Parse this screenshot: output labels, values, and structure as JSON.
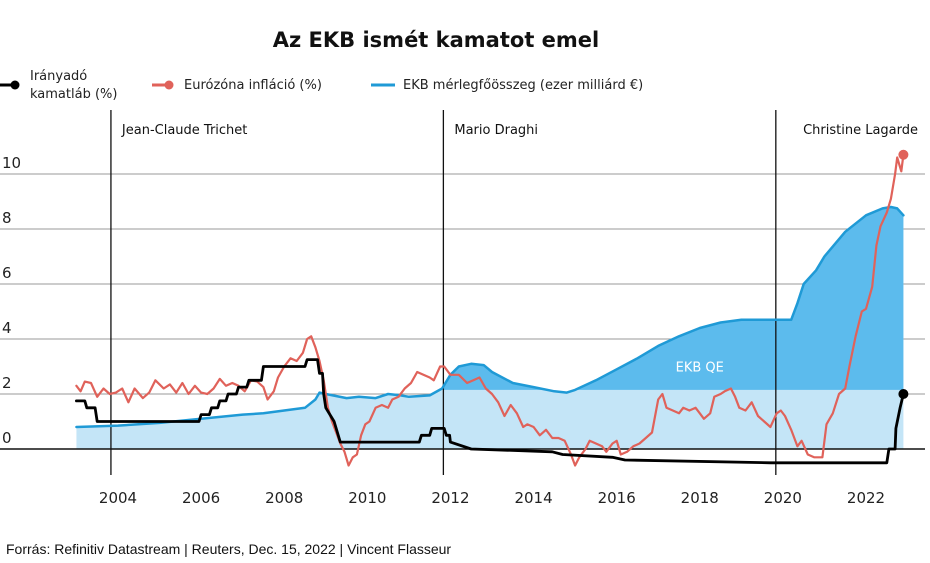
{
  "chart_data": {
    "type": "line",
    "title": "Az EKB ismét kamatot emel",
    "source": "Forrás: Refinitiv Datastream | Reuters, Dec. 15, 2022 | Vincent Flasseur",
    "legend": {
      "placement": "top-left",
      "entries": [
        {
          "label_line1": "Irányadó",
          "label_line2": "kamatláb (%)",
          "color": "#000000",
          "marker": "dot"
        },
        {
          "label": "Eurózóna infláció (%)",
          "color": "#e0625a",
          "marker": "dot"
        },
        {
          "label": "EKB mérlegfőösszeg (ezer milliárd €)",
          "color": "#1f9ad6",
          "marker": "line"
        }
      ]
    },
    "xlim": [
      2002.7,
      2023.3
    ],
    "ylim": [
      -1,
      11.5
    ],
    "grid": "horizontal",
    "yticks": [
      0,
      2,
      4,
      6,
      8,
      10
    ],
    "ytick_labels": [
      "0",
      "2",
      "4",
      "6",
      "8",
      "10"
    ],
    "xticks": [
      2004,
      2006,
      2008,
      2010,
      2012,
      2014,
      2016,
      2018,
      2020,
      2022
    ],
    "xtick_labels": [
      "2004",
      "2006",
      "2008",
      "2010",
      "2012",
      "2014",
      "2016",
      "2018",
      "2020",
      "2022"
    ],
    "eras": [
      {
        "label": "Jean-Claude Trichet",
        "start": 2003.83
      },
      {
        "label": "Mario Draghi",
        "start": 2011.83
      },
      {
        "label": "Christine Lagarde",
        "start": 2019.83
      }
    ],
    "annotation": {
      "label": "EKB QE",
      "x": 2018.0,
      "y": 3.0
    },
    "qe_threshold": 2.15,
    "series": [
      {
        "name": "Irányadó kamatláb (%)",
        "color": "#000000",
        "points": [
          [
            2003.0,
            1.75
          ],
          [
            2003.2,
            1.75
          ],
          [
            2003.25,
            1.5
          ],
          [
            2003.45,
            1.5
          ],
          [
            2003.5,
            1.0
          ],
          [
            2005.95,
            1.0
          ],
          [
            2006.0,
            1.25
          ],
          [
            2006.2,
            1.25
          ],
          [
            2006.25,
            1.5
          ],
          [
            2006.4,
            1.5
          ],
          [
            2006.45,
            1.75
          ],
          [
            2006.6,
            1.75
          ],
          [
            2006.65,
            2.0
          ],
          [
            2006.85,
            2.0
          ],
          [
            2006.9,
            2.25
          ],
          [
            2007.1,
            2.25
          ],
          [
            2007.15,
            2.5
          ],
          [
            2007.45,
            2.5
          ],
          [
            2007.5,
            3.0
          ],
          [
            2008.5,
            3.0
          ],
          [
            2008.55,
            3.25
          ],
          [
            2008.8,
            3.25
          ],
          [
            2008.85,
            2.75
          ],
          [
            2008.92,
            2.75
          ],
          [
            2008.95,
            2.0
          ],
          [
            2009.0,
            1.5
          ],
          [
            2009.2,
            1.0
          ],
          [
            2009.35,
            0.25
          ],
          [
            2011.25,
            0.25
          ],
          [
            2011.3,
            0.5
          ],
          [
            2011.5,
            0.5
          ],
          [
            2011.55,
            0.75
          ],
          [
            2011.85,
            0.75
          ],
          [
            2011.9,
            0.5
          ],
          [
            2011.98,
            0.5
          ],
          [
            2012.0,
            0.25
          ],
          [
            2012.5,
            0.0
          ],
          [
            2014.45,
            -0.1
          ],
          [
            2014.7,
            -0.2
          ],
          [
            2015.9,
            -0.3
          ],
          [
            2016.2,
            -0.4
          ],
          [
            2019.7,
            -0.5
          ],
          [
            2022.5,
            -0.5
          ],
          [
            2022.55,
            0.0
          ],
          [
            2022.7,
            0.0
          ],
          [
            2022.72,
            0.75
          ],
          [
            2022.82,
            1.5
          ],
          [
            2022.9,
            2.0
          ]
        ]
      },
      {
        "name": "Eurózóna infláció (%)",
        "color": "#e0625a",
        "points": [
          [
            2003.0,
            2.3
          ],
          [
            2003.1,
            2.1
          ],
          [
            2003.2,
            2.45
          ],
          [
            2003.35,
            2.4
          ],
          [
            2003.5,
            1.9
          ],
          [
            2003.65,
            2.2
          ],
          [
            2003.8,
            2.0
          ],
          [
            2003.95,
            2.05
          ],
          [
            2004.1,
            2.2
          ],
          [
            2004.25,
            1.7
          ],
          [
            2004.4,
            2.2
          ],
          [
            2004.6,
            1.85
          ],
          [
            2004.75,
            2.05
          ],
          [
            2004.9,
            2.5
          ],
          [
            2005.1,
            2.2
          ],
          [
            2005.25,
            2.35
          ],
          [
            2005.4,
            2.05
          ],
          [
            2005.55,
            2.4
          ],
          [
            2005.7,
            2.0
          ],
          [
            2005.85,
            2.3
          ],
          [
            2006.0,
            2.05
          ],
          [
            2006.15,
            2.0
          ],
          [
            2006.3,
            2.2
          ],
          [
            2006.45,
            2.55
          ],
          [
            2006.6,
            2.3
          ],
          [
            2006.75,
            2.4
          ],
          [
            2006.9,
            2.3
          ],
          [
            2007.05,
            2.1
          ],
          [
            2007.2,
            2.5
          ],
          [
            2007.35,
            2.45
          ],
          [
            2007.5,
            2.25
          ],
          [
            2007.6,
            1.8
          ],
          [
            2007.75,
            2.1
          ],
          [
            2007.85,
            2.6
          ],
          [
            2008.0,
            3.0
          ],
          [
            2008.15,
            3.3
          ],
          [
            2008.3,
            3.2
          ],
          [
            2008.45,
            3.5
          ],
          [
            2008.55,
            4.0
          ],
          [
            2008.65,
            4.1
          ],
          [
            2008.75,
            3.7
          ],
          [
            2008.85,
            3.2
          ],
          [
            2008.95,
            2.5
          ],
          [
            2009.05,
            1.5
          ],
          [
            2009.15,
            1.0
          ],
          [
            2009.25,
            0.6
          ],
          [
            2009.35,
            0.2
          ],
          [
            2009.45,
            -0.1
          ],
          [
            2009.55,
            -0.6
          ],
          [
            2009.65,
            -0.3
          ],
          [
            2009.75,
            -0.2
          ],
          [
            2009.85,
            0.5
          ],
          [
            2009.95,
            0.9
          ],
          [
            2010.05,
            1.0
          ],
          [
            2010.2,
            1.5
          ],
          [
            2010.35,
            1.6
          ],
          [
            2010.5,
            1.5
          ],
          [
            2010.6,
            1.8
          ],
          [
            2010.75,
            1.9
          ],
          [
            2010.9,
            2.2
          ],
          [
            2011.05,
            2.4
          ],
          [
            2011.2,
            2.8
          ],
          [
            2011.35,
            2.7
          ],
          [
            2011.5,
            2.6
          ],
          [
            2011.6,
            2.5
          ],
          [
            2011.75,
            3.0
          ],
          [
            2011.85,
            3.0
          ],
          [
            2012.0,
            2.7
          ],
          [
            2012.2,
            2.7
          ],
          [
            2012.4,
            2.4
          ],
          [
            2012.55,
            2.5
          ],
          [
            2012.7,
            2.6
          ],
          [
            2012.85,
            2.2
          ],
          [
            2013.0,
            2.0
          ],
          [
            2013.15,
            1.7
          ],
          [
            2013.3,
            1.2
          ],
          [
            2013.45,
            1.6
          ],
          [
            2013.6,
            1.3
          ],
          [
            2013.75,
            0.8
          ],
          [
            2013.85,
            0.9
          ],
          [
            2014.0,
            0.8
          ],
          [
            2014.15,
            0.5
          ],
          [
            2014.3,
            0.7
          ],
          [
            2014.45,
            0.4
          ],
          [
            2014.6,
            0.4
          ],
          [
            2014.75,
            0.3
          ],
          [
            2014.9,
            -0.2
          ],
          [
            2015.0,
            -0.6
          ],
          [
            2015.1,
            -0.3
          ],
          [
            2015.25,
            0.0
          ],
          [
            2015.35,
            0.3
          ],
          [
            2015.5,
            0.2
          ],
          [
            2015.65,
            0.1
          ],
          [
            2015.75,
            -0.1
          ],
          [
            2015.9,
            0.2
          ],
          [
            2016.0,
            0.3
          ],
          [
            2016.1,
            -0.2
          ],
          [
            2016.25,
            -0.1
          ],
          [
            2016.4,
            0.1
          ],
          [
            2016.55,
            0.2
          ],
          [
            2016.7,
            0.4
          ],
          [
            2016.85,
            0.6
          ],
          [
            2017.0,
            1.8
          ],
          [
            2017.1,
            2.0
          ],
          [
            2017.2,
            1.5
          ],
          [
            2017.35,
            1.4
          ],
          [
            2017.5,
            1.3
          ],
          [
            2017.6,
            1.5
          ],
          [
            2017.75,
            1.4
          ],
          [
            2017.9,
            1.5
          ],
          [
            2018.0,
            1.3
          ],
          [
            2018.1,
            1.1
          ],
          [
            2018.25,
            1.3
          ],
          [
            2018.35,
            1.9
          ],
          [
            2018.5,
            2.0
          ],
          [
            2018.6,
            2.1
          ],
          [
            2018.75,
            2.2
          ],
          [
            2018.85,
            1.9
          ],
          [
            2018.95,
            1.5
          ],
          [
            2019.1,
            1.4
          ],
          [
            2019.25,
            1.7
          ],
          [
            2019.4,
            1.2
          ],
          [
            2019.55,
            1.0
          ],
          [
            2019.7,
            0.8
          ],
          [
            2019.85,
            1.3
          ],
          [
            2019.95,
            1.4
          ],
          [
            2020.05,
            1.2
          ],
          [
            2020.2,
            0.7
          ],
          [
            2020.35,
            0.1
          ],
          [
            2020.45,
            0.3
          ],
          [
            2020.6,
            -0.2
          ],
          [
            2020.75,
            -0.3
          ],
          [
            2020.95,
            -0.3
          ],
          [
            2021.05,
            0.9
          ],
          [
            2021.2,
            1.3
          ],
          [
            2021.35,
            2.0
          ],
          [
            2021.5,
            2.2
          ],
          [
            2021.6,
            3.0
          ],
          [
            2021.75,
            4.1
          ],
          [
            2021.9,
            5.0
          ],
          [
            2022.0,
            5.1
          ],
          [
            2022.15,
            5.9
          ],
          [
            2022.25,
            7.4
          ],
          [
            2022.35,
            8.1
          ],
          [
            2022.5,
            8.6
          ],
          [
            2022.6,
            9.1
          ],
          [
            2022.7,
            10.0
          ],
          [
            2022.75,
            10.6
          ],
          [
            2022.85,
            10.1
          ],
          [
            2022.9,
            10.7
          ]
        ]
      },
      {
        "name": "EKB mérlegfőösszeg (ezer milliárd €)",
        "color": "#1f9ad6",
        "points": [
          [
            2003.0,
            0.8
          ],
          [
            2004.0,
            0.85
          ],
          [
            2005.0,
            0.95
          ],
          [
            2006.0,
            1.1
          ],
          [
            2007.0,
            1.25
          ],
          [
            2007.5,
            1.3
          ],
          [
            2008.0,
            1.4
          ],
          [
            2008.5,
            1.5
          ],
          [
            2008.75,
            1.8
          ],
          [
            2008.85,
            2.05
          ],
          [
            2009.0,
            2.0
          ],
          [
            2009.5,
            1.85
          ],
          [
            2009.8,
            1.9
          ],
          [
            2010.2,
            1.85
          ],
          [
            2010.5,
            2.0
          ],
          [
            2010.8,
            1.95
          ],
          [
            2011.0,
            1.9
          ],
          [
            2011.5,
            1.95
          ],
          [
            2011.8,
            2.2
          ],
          [
            2012.0,
            2.7
          ],
          [
            2012.2,
            3.0
          ],
          [
            2012.5,
            3.1
          ],
          [
            2012.8,
            3.05
          ],
          [
            2013.0,
            2.8
          ],
          [
            2013.5,
            2.4
          ],
          [
            2014.0,
            2.25
          ],
          [
            2014.5,
            2.1
          ],
          [
            2014.8,
            2.05
          ],
          [
            2015.0,
            2.15
          ],
          [
            2015.5,
            2.5
          ],
          [
            2016.0,
            2.9
          ],
          [
            2016.5,
            3.3
          ],
          [
            2017.0,
            3.75
          ],
          [
            2017.5,
            4.1
          ],
          [
            2018.0,
            4.4
          ],
          [
            2018.5,
            4.6
          ],
          [
            2019.0,
            4.7
          ],
          [
            2019.5,
            4.7
          ],
          [
            2019.9,
            4.7
          ],
          [
            2020.2,
            4.7
          ],
          [
            2020.35,
            5.3
          ],
          [
            2020.5,
            6.0
          ],
          [
            2020.8,
            6.5
          ],
          [
            2021.0,
            7.0
          ],
          [
            2021.5,
            7.9
          ],
          [
            2022.0,
            8.5
          ],
          [
            2022.4,
            8.75
          ],
          [
            2022.6,
            8.8
          ],
          [
            2022.75,
            8.75
          ],
          [
            2022.9,
            8.5
          ]
        ]
      }
    ]
  }
}
